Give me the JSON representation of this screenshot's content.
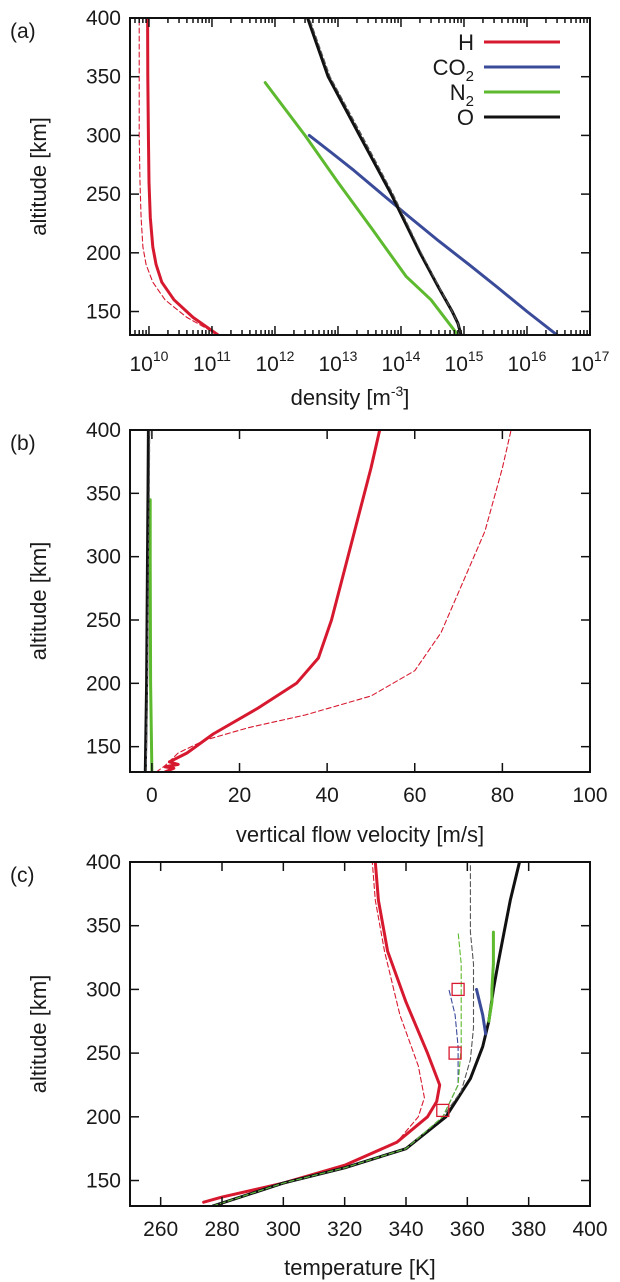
{
  "chart_data": [
    {
      "panel": "(a)",
      "type": "line",
      "xscale": "log",
      "xlabel_parts": {
        "base": "density [m",
        "sup": "-3",
        "close": "]"
      },
      "ylabel": "altitude [km]",
      "xlim": [
        5000000000.0,
        1e+17
      ],
      "ylim": [
        130,
        400
      ],
      "xtick_exponents": [
        10,
        11,
        12,
        13,
        14,
        15,
        16,
        17
      ],
      "xtick_base": "10",
      "yticks": [
        150,
        200,
        250,
        300,
        350,
        400
      ],
      "legend": {
        "placement": "top-right",
        "entries": [
          {
            "base": "H",
            "sub": "",
            "color": "#d7192f"
          },
          {
            "base": "CO",
            "sub": "2",
            "color": "#3a4b9a"
          },
          {
            "base": "N",
            "sub": "2",
            "color": "#5dba2f"
          },
          {
            "base": "O",
            "sub": "",
            "color": "#111111"
          }
        ]
      },
      "series": [
        {
          "color": "#d7192f",
          "style": "solid",
          "x": [
            125000000000.0,
            50000000000.0,
            25000000000.0,
            16000000000.0,
            13000000000.0,
            11500000000.0,
            10500000000.0,
            10000000000.0,
            9800000000.0,
            9600000000.0,
            9500000000.0
          ],
          "y": [
            130,
            145,
            160,
            175,
            190,
            205,
            230,
            260,
            300,
            350,
            400
          ]
        },
        {
          "color": "#d7192f",
          "style": "dashed",
          "x": [
            125000000000.0,
            40000000000.0,
            18000000000.0,
            11500000000.0,
            9000000000.0,
            8000000000.0,
            7500000000.0,
            7200000000.0,
            7000000000.0,
            7000000000.0,
            7000000000.0
          ],
          "y": [
            130,
            145,
            160,
            175,
            190,
            205,
            230,
            260,
            300,
            350,
            400
          ]
        },
        {
          "color": "#3a4b9a",
          "style": "solid",
          "x": [
            3e+16,
            1e+16,
            3500000000000000.0,
            1200000000000000.0,
            400000000000000.0,
            140000000000000.0,
            50000000000000.0,
            18000000000000.0,
            8000000000000.0,
            3500000000000.0
          ],
          "y": [
            130,
            150,
            170,
            190,
            210,
            230,
            250,
            270,
            285,
            300
          ]
        },
        {
          "color": "#5dba2f",
          "style": "solid",
          "x": [
            800000000000000.0,
            300000000000000.0,
            120000000000000.0,
            35000000000000.0,
            10000000000000.0,
            3000000000000.0,
            700000000000.0
          ],
          "y": [
            130,
            160,
            180,
            220,
            260,
            300,
            345
          ]
        },
        {
          "color": "#111111",
          "style": "solid",
          "x": [
            900000000000000.0,
            800000000000000.0,
            650000000000000.0,
            400000000000000.0,
            200000000000000.0,
            70000000000000.0,
            22000000000000.0,
            7000000000000.0,
            3300000000000.0
          ],
          "y": [
            130,
            140,
            150,
            170,
            200,
            250,
            300,
            350,
            400
          ]
        },
        {
          "color": "#555555",
          "style": "dashed",
          "x": [
            900000000000000.0,
            800000000000000.0,
            650000000000000.0,
            410000000000000.0,
            210000000000000.0,
            75000000000000.0,
            24000000000000.0,
            7500000000000.0,
            3500000000000.0
          ],
          "y": [
            130,
            140,
            150,
            170,
            200,
            250,
            300,
            350,
            400
          ]
        }
      ]
    },
    {
      "panel": "(b)",
      "type": "line",
      "xscale": "linear",
      "xlabel": "vertical flow velocity [m/s]",
      "ylabel": "altitude [km]",
      "xlim": [
        -5,
        100
      ],
      "ylim": [
        130,
        400
      ],
      "xticks": [
        0,
        20,
        40,
        60,
        80,
        100
      ],
      "yticks": [
        150,
        200,
        250,
        300,
        350,
        400
      ],
      "series": [
        {
          "color": "#d7192f",
          "style": "solid",
          "x": [
            3,
            5,
            3,
            6,
            4,
            8,
            14,
            24,
            33,
            38,
            41,
            44,
            47,
            50,
            52
          ],
          "y": [
            130,
            133,
            134,
            136,
            138,
            145,
            160,
            180,
            200,
            220,
            250,
            290,
            330,
            370,
            400
          ]
        },
        {
          "color": "#d7192f",
          "style": "dashed",
          "x": [
            1,
            3,
            6,
            12,
            22,
            35,
            50,
            60,
            66,
            71,
            76,
            80,
            82
          ],
          "y": [
            130,
            135,
            145,
            155,
            165,
            175,
            190,
            210,
            240,
            280,
            320,
            370,
            400
          ]
        },
        {
          "color": "#5dba2f",
          "style": "solid",
          "x": [
            0,
            -0.3,
            -0.4,
            -0.4
          ],
          "y": [
            130,
            200,
            300,
            345
          ]
        },
        {
          "color": "#111111",
          "style": "solid",
          "x": [
            -1.5,
            -1.2,
            -1.0,
            -0.9,
            -0.8
          ],
          "y": [
            130,
            200,
            300,
            350,
            400
          ]
        },
        {
          "color": "#555555",
          "style": "dashed",
          "x": [
            -1.3,
            -1.0,
            -0.8,
            -0.6,
            -0.5
          ],
          "y": [
            130,
            200,
            300,
            350,
            400
          ]
        }
      ]
    },
    {
      "panel": "(c)",
      "type": "line",
      "xscale": "linear",
      "xlabel": "temperature [K]",
      "ylabel": "altitude [km]",
      "xlim": [
        250,
        400
      ],
      "ylim": [
        130,
        400
      ],
      "xticks": [
        260,
        280,
        300,
        320,
        340,
        360,
        380,
        400
      ],
      "yticks": [
        150,
        200,
        250,
        300,
        350,
        400
      ],
      "series": [
        {
          "color": "#d7192f",
          "style": "solid",
          "x": [
            274,
            280,
            300,
            320,
            337,
            347,
            350,
            351,
            347,
            340,
            334,
            331,
            330
          ],
          "y": [
            133,
            137,
            148,
            162,
            180,
            200,
            212,
            225,
            250,
            290,
            330,
            370,
            400
          ]
        },
        {
          "color": "#d7192f",
          "style": "dashed",
          "x": [
            274,
            280,
            300,
            320,
            337,
            344,
            346,
            344,
            338,
            333,
            330,
            329
          ],
          "y": [
            133,
            137,
            148,
            162,
            180,
            200,
            215,
            240,
            280,
            330,
            370,
            400
          ]
        },
        {
          "color": "#111111",
          "style": "solid",
          "x": [
            277,
            300,
            320,
            340,
            353,
            361,
            365,
            367,
            368.5,
            370,
            372,
            374,
            377
          ],
          "y": [
            130,
            148,
            160,
            175,
            200,
            230,
            255,
            275,
            300,
            320,
            345,
            370,
            400
          ]
        },
        {
          "color": "#555555",
          "style": "dashed",
          "x": [
            277,
            300,
            320,
            340,
            352,
            358,
            361,
            362,
            362,
            362,
            361,
            361,
            361
          ],
          "y": [
            130,
            148,
            160,
            175,
            200,
            220,
            245,
            270,
            300,
            320,
            345,
            370,
            400
          ]
        },
        {
          "color": "#3a4b9a",
          "style": "solid",
          "x": [
            366,
            365,
            364,
            363
          ],
          "y": [
            265,
            280,
            290,
            300
          ]
        },
        {
          "color": "#3a4b9a",
          "style": "dashed",
          "x": [
            277,
            300,
            320,
            340,
            352,
            357,
            357,
            356,
            354
          ],
          "y": [
            130,
            148,
            160,
            175,
            200,
            225,
            255,
            280,
            300
          ]
        },
        {
          "color": "#5dba2f",
          "style": "solid",
          "x": [
            367,
            368,
            368,
            368.5,
            368.5
          ],
          "y": [
            275,
            290,
            300,
            320,
            345
          ]
        },
        {
          "color": "#5dba2f",
          "style": "dashed",
          "x": [
            277,
            300,
            320,
            340,
            352,
            357,
            358,
            358,
            358,
            357
          ],
          "y": [
            130,
            148,
            160,
            175,
            200,
            225,
            255,
            290,
            320,
            345
          ]
        }
      ],
      "markers": {
        "color": "#d7192f",
        "x": [
          352,
          356,
          357
        ],
        "y": [
          205,
          250,
          300
        ]
      }
    }
  ]
}
